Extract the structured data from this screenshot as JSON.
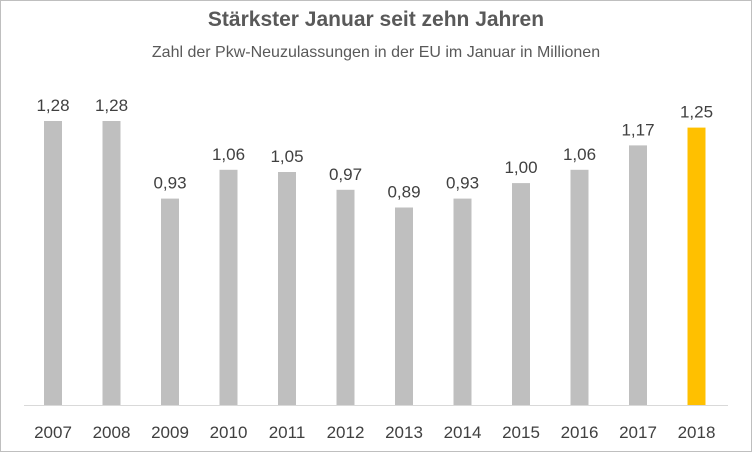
{
  "chart_data": {
    "type": "bar",
    "title": "Stärkster Januar seit zehn Jahren",
    "subtitle": "Zahl der Pkw-Neuzulassungen in der EU im Januar in Millionen",
    "xlabel": "",
    "ylabel": "",
    "categories": [
      "2007",
      "2008",
      "2009",
      "2010",
      "2011",
      "2012",
      "2013",
      "2014",
      "2015",
      "2016",
      "2017",
      "2018"
    ],
    "values": [
      1.28,
      1.28,
      0.93,
      1.06,
      1.05,
      0.97,
      0.89,
      0.93,
      1.0,
      1.06,
      1.17,
      1.25
    ],
    "labels": [
      "1,28",
      "1,28",
      "0,93",
      "1,06",
      "1,05",
      "0,97",
      "0,89",
      "0,93",
      "1,00",
      "1,06",
      "1,17",
      "1,25"
    ],
    "ylim": [
      0,
      1.4
    ],
    "grid": false,
    "legend": "none",
    "colors": {
      "default": "#bfbfbf",
      "highlight": "#ffc000",
      "highlight_category": "2018",
      "axis": "#d9d9d9"
    }
  }
}
